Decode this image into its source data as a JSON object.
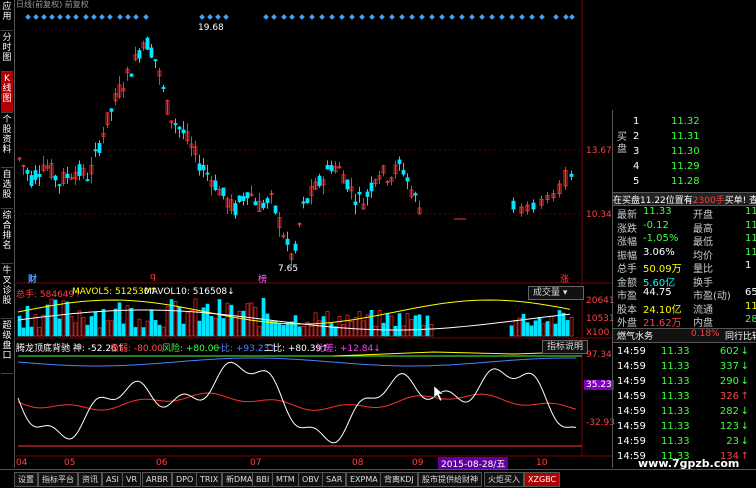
{
  "window": {
    "title": "日线(前复权) 前复权"
  },
  "sidebar": {
    "items": [
      {
        "label": "应用"
      },
      {
        "label": "分时图"
      },
      {
        "label": "K线图"
      },
      {
        "label": "个股资料"
      },
      {
        "label": "自选股"
      },
      {
        "label": "综合排名"
      },
      {
        "label": "牛叉诊股"
      },
      {
        "label": "超级盘口"
      }
    ]
  },
  "main_chart": {
    "high_label": "19.68",
    "low_label": "7.65",
    "axis_prices": [
      "13.67",
      "10.34"
    ],
    "event_markers": [
      {
        "text": "财",
        "color": "#4aa0ff"
      },
      {
        "text": "q",
        "color": "#ff4040"
      },
      {
        "text": "榜",
        "color": "#ff66ff"
      },
      {
        "text": "涨",
        "color": "#ff4040"
      }
    ]
  },
  "volume_panel": {
    "total_label": "总手: 584649↑",
    "mavol5_label": "MAVOL5: 512530↑",
    "mavol10_label": "MAVOL10: 516508↓",
    "dropdown_label": "成交量",
    "axis_labels": [
      "20641",
      "10531",
      "X100"
    ]
  },
  "indicator_panel": {
    "name": "腾龙顶底背驰 神: -52.26↑",
    "labels": [
      {
        "text": "极弱: -80.00",
        "color": "#ff5050"
      },
      {
        "text": "风险: +80.00",
        "color": "#40ff40"
      },
      {
        "text": "一比: +93.23↑",
        "color": "#5080ff"
      },
      {
        "text": "二比: +80.39↑",
        "color": "#ffffff"
      },
      {
        "text": "比差: +12.84↓",
        "color": "#ff40ff"
      }
    ],
    "help_button": "指标说明",
    "axis_labels": [
      "97.34",
      "35.23",
      "-32.93"
    ]
  },
  "date_axis": {
    "labels": [
      "04",
      "05",
      "06",
      "07",
      "08",
      "09",
      "10"
    ],
    "highlight": "2015-08-28/五"
  },
  "order_book": {
    "side_label": "买盘",
    "rows": [
      {
        "level": "1",
        "price": "11.32"
      },
      {
        "level": "2",
        "price": "11.31"
      },
      {
        "level": "3",
        "price": "11.30"
      },
      {
        "level": "4",
        "price": "11.29"
      },
      {
        "level": "5",
        "price": "11.28"
      }
    ]
  },
  "quote": {
    "header_left": "在买盘11.22位置有",
    "header_mid": "2300手",
    "header_right": "买单! 查看",
    "rows": [
      {
        "l1": "最新",
        "v1": "11.33",
        "c1": "#40ff40",
        "l2": "开盘",
        "v2": "11",
        "c2": "#40ff40"
      },
      {
        "l1": "涨跌",
        "v1": "-0.12",
        "c1": "#40ff40",
        "l2": "最高",
        "v2": "11",
        "c2": "#40ff40"
      },
      {
        "l1": "涨幅",
        "v1": "-1.05%",
        "c1": "#40ff40",
        "l2": "最低",
        "v2": "11",
        "c2": "#40ff40"
      },
      {
        "l1": "振幅",
        "v1": "3.06%",
        "c1": "#ffffff",
        "l2": "均价",
        "v2": "11",
        "c2": "#40ff40"
      },
      {
        "l1": "总手",
        "v1": "50.09万",
        "c1": "#ffff00",
        "l2": "量比",
        "v2": "1",
        "c2": "#ffffff"
      },
      {
        "l1": "金额",
        "v1": "5.60亿",
        "c1": "#00ffff",
        "l2": "换手",
        "v2": "",
        "c2": "#ffff00"
      },
      {
        "l1": "市盈",
        "v1": "44.75",
        "c1": "#ffffff",
        "l2": "市盈(动)",
        "v2": "65",
        "c2": "#ffffff"
      },
      {
        "l1": "股本",
        "v1": "24.10亿",
        "c1": "#ffff00",
        "l2": "流通",
        "v2": "11",
        "c2": "#ffff00"
      },
      {
        "l1": "外盘",
        "v1": "21.62万",
        "c1": "#ff4040",
        "l2": "内盘",
        "v2": "28",
        "c2": "#40ff40"
      }
    ]
  },
  "industry": {
    "name": "燃气水务",
    "value": "0.18%",
    "right_label": "同行比较"
  },
  "trades": [
    {
      "time": "14:59",
      "price": "11.33",
      "vol": "602",
      "arrow": "↓"
    },
    {
      "time": "14:59",
      "price": "11.33",
      "vol": "337",
      "arrow": "↓"
    },
    {
      "time": "14:59",
      "price": "11.33",
      "vol": "290",
      "arrow": "↓"
    },
    {
      "time": "14:59",
      "price": "11.33",
      "vol": "326",
      "arrow": "↑"
    },
    {
      "time": "14:59",
      "price": "11.33",
      "vol": "282",
      "arrow": "↓"
    },
    {
      "time": "14:59",
      "price": "11.33",
      "vol": "123",
      "arrow": "↓"
    },
    {
      "time": "14:59",
      "price": "11.33",
      "vol": "23",
      "arrow": "↓"
    },
    {
      "time": "14:59",
      "price": "11.33",
      "vol": "134",
      "arrow": "↑"
    }
  ],
  "bottom_tabs": [
    "设置",
    "指标平台",
    "资讯",
    "ASI",
    "VR",
    "ARBR",
    "DPO",
    "TRIX",
    "新DMA",
    "BBI",
    "MTM",
    "OBV",
    "SAR",
    "EXPMA",
    "背离KDJ",
    "股市提供给财神",
    "火炬买入",
    "XZGBC"
  ],
  "watermark": "www.7gpzb.com",
  "colors": {
    "up": "#ff3030",
    "down": "#00e5ff",
    "accent": "#b00000"
  }
}
